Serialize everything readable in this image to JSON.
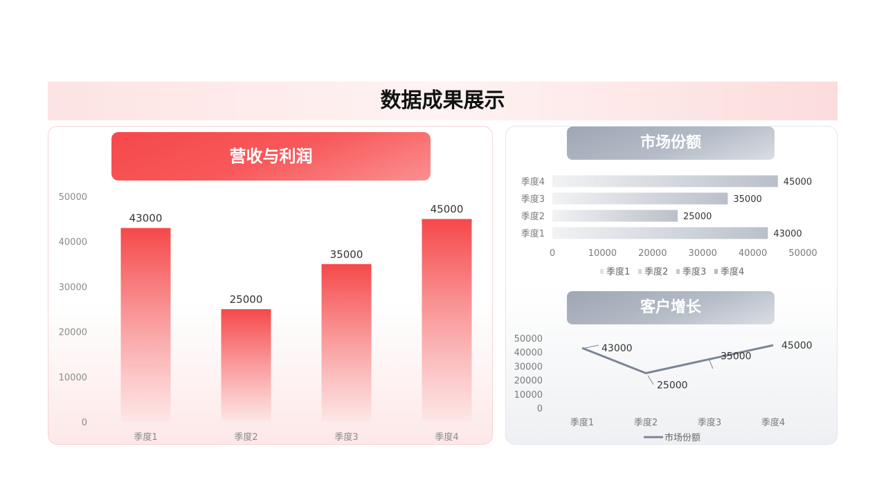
{
  "page": {
    "title": "数据成果展示"
  },
  "colors": {
    "red": "#f5484a",
    "gray": "#a3abb8",
    "line": "#7c8596"
  },
  "chart_data": [
    {
      "type": "bar",
      "title": "营收与利润",
      "categories": [
        "季度1",
        "季度2",
        "季度3",
        "季度4"
      ],
      "values": [
        43000,
        25000,
        35000,
        45000
      ],
      "data_labels": [
        "43000",
        "25000",
        "35000",
        "45000"
      ],
      "ylim": [
        0,
        50000
      ],
      "yticks": [
        "0",
        "10000",
        "20000",
        "30000",
        "40000",
        "50000"
      ],
      "grid": false
    },
    {
      "type": "bar",
      "orientation": "horizontal",
      "title": "市场份额",
      "categories": [
        "季度1",
        "季度2",
        "季度3",
        "季度4"
      ],
      "values": [
        43000,
        25000,
        35000,
        45000
      ],
      "data_labels": [
        "43000",
        "25000",
        "35000",
        "45000"
      ],
      "xlim": [
        0,
        50000
      ],
      "xticks": [
        "0",
        "10000",
        "20000",
        "30000",
        "40000",
        "50000"
      ],
      "legend": [
        "季度1",
        "季度2",
        "季度3",
        "季度4"
      ],
      "legend_position": "bottom"
    },
    {
      "type": "line",
      "title": "客户增长",
      "categories": [
        "季度1",
        "季度2",
        "季度3",
        "季度4"
      ],
      "series": [
        {
          "name": "市场份额",
          "values": [
            43000,
            25000,
            35000,
            45000
          ]
        }
      ],
      "data_labels": [
        "43000",
        "25000",
        "35000",
        "45000"
      ],
      "ylim": [
        0,
        50000
      ],
      "yticks": [
        "0",
        "10000",
        "20000",
        "30000",
        "40000",
        "50000"
      ],
      "legend_position": "bottom"
    }
  ]
}
